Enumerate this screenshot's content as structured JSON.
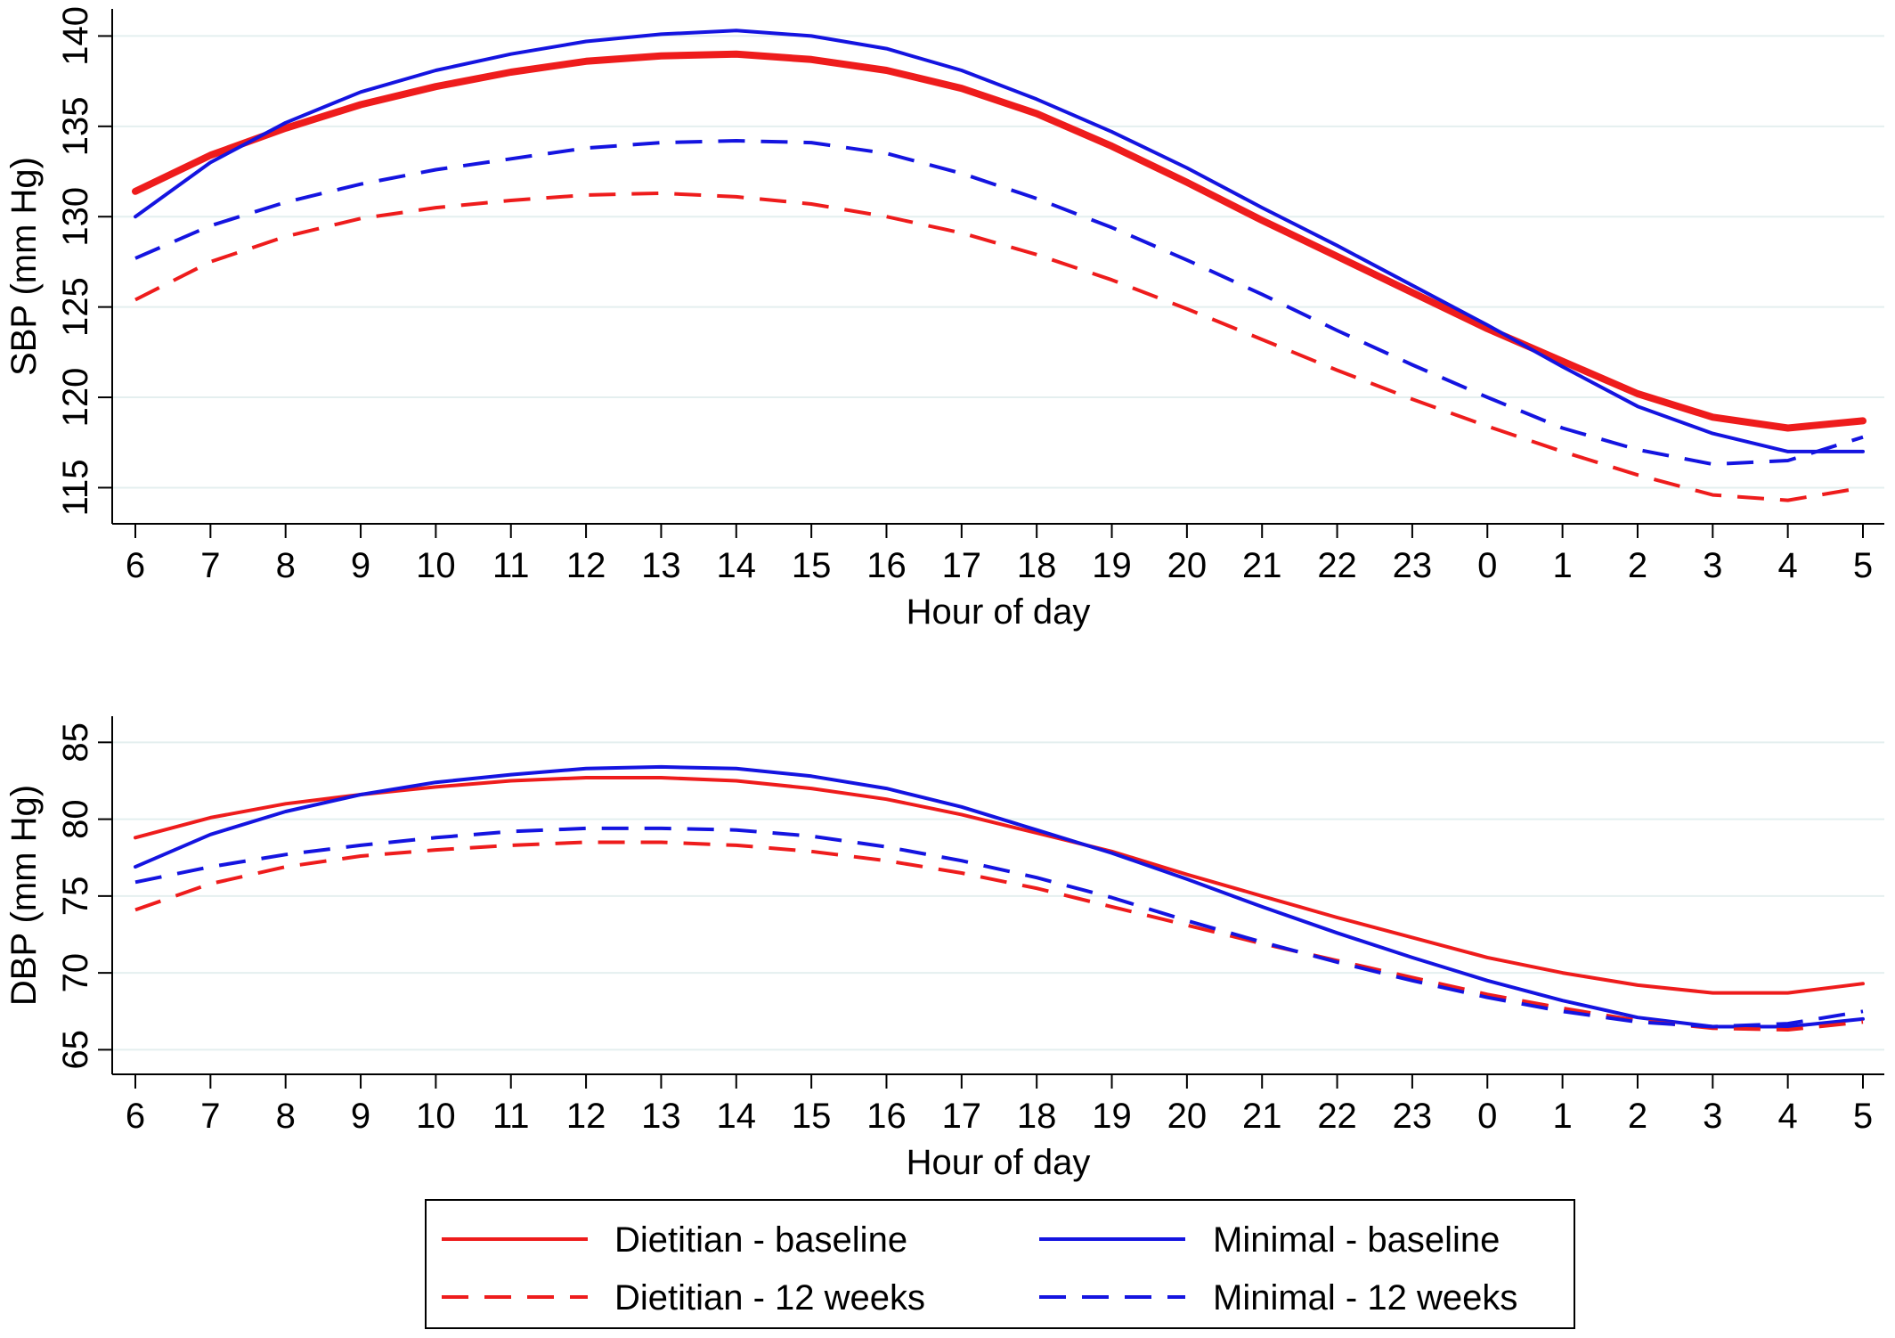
{
  "colors": {
    "dietitian": "#ee1c1c",
    "minimal": "#1414e0",
    "grid": "#e4efef"
  },
  "chart_data": [
    {
      "type": "line",
      "xlabel": "Hour of day",
      "ylabel": "SBP (mm Hg)",
      "categories": [
        "6",
        "7",
        "8",
        "9",
        "10",
        "11",
        "12",
        "13",
        "14",
        "15",
        "16",
        "17",
        "18",
        "19",
        "20",
        "21",
        "22",
        "23",
        "0",
        "1",
        "2",
        "3",
        "4",
        "5"
      ],
      "yticks": [
        115,
        120,
        125,
        130,
        135,
        140
      ],
      "ylim": [
        113,
        141.5
      ],
      "grid": true,
      "series": [
        {
          "name": "Dietitian - baseline",
          "color": "#ee1c1c",
          "dash": false,
          "thick": true,
          "values": [
            131.4,
            133.4,
            134.9,
            136.2,
            137.2,
            138.0,
            138.6,
            138.9,
            139.0,
            138.7,
            138.1,
            137.1,
            135.7,
            133.9,
            131.9,
            129.8,
            127.8,
            125.8,
            123.8,
            122.0,
            120.2,
            118.9,
            118.3,
            118.7
          ]
        },
        {
          "name": "Minimal - baseline",
          "color": "#1414e0",
          "dash": false,
          "thick": false,
          "values": [
            130.0,
            133.0,
            135.2,
            136.9,
            138.1,
            139.0,
            139.7,
            140.1,
            140.3,
            140.0,
            139.3,
            138.1,
            136.5,
            134.7,
            132.7,
            130.5,
            128.4,
            126.2,
            124.0,
            121.7,
            119.5,
            118.0,
            117.0,
            117.0
          ]
        },
        {
          "name": "Dietitian - 12 weeks",
          "color": "#ee1c1c",
          "dash": true,
          "thick": false,
          "values": [
            125.4,
            127.5,
            128.9,
            129.9,
            130.5,
            130.9,
            131.2,
            131.3,
            131.1,
            130.7,
            130.0,
            129.1,
            127.9,
            126.5,
            124.9,
            123.2,
            121.5,
            119.9,
            118.4,
            117.0,
            115.7,
            114.6,
            114.3,
            115.0
          ]
        },
        {
          "name": "Minimal - 12 weeks",
          "color": "#1414e0",
          "dash": true,
          "thick": false,
          "values": [
            127.7,
            129.5,
            130.8,
            131.8,
            132.6,
            133.2,
            133.8,
            134.1,
            134.2,
            134.1,
            133.5,
            132.4,
            131.0,
            129.4,
            127.6,
            125.7,
            123.7,
            121.8,
            120.0,
            118.3,
            117.1,
            116.3,
            116.5,
            117.8
          ]
        }
      ]
    },
    {
      "type": "line",
      "xlabel": "Hour of day",
      "ylabel": "DBP (mm Hg)",
      "categories": [
        "6",
        "7",
        "8",
        "9",
        "10",
        "11",
        "12",
        "13",
        "14",
        "15",
        "16",
        "17",
        "18",
        "19",
        "20",
        "21",
        "22",
        "23",
        "0",
        "1",
        "2",
        "3",
        "4",
        "5"
      ],
      "yticks": [
        65,
        70,
        75,
        80,
        85
      ],
      "ylim": [
        63.4,
        86.7
      ],
      "grid": true,
      "series": [
        {
          "name": "Dietitian - baseline",
          "color": "#ee1c1c",
          "dash": false,
          "thick": false,
          "values": [
            78.8,
            80.1,
            81.0,
            81.6,
            82.1,
            82.5,
            82.7,
            82.7,
            82.5,
            82.0,
            81.3,
            80.3,
            79.1,
            77.9,
            76.4,
            75.0,
            73.6,
            72.3,
            71.0,
            70.0,
            69.2,
            68.7,
            68.7,
            69.3
          ]
        },
        {
          "name": "Minimal - baseline",
          "color": "#1414e0",
          "dash": false,
          "thick": false,
          "values": [
            76.9,
            79.0,
            80.5,
            81.6,
            82.4,
            82.9,
            83.3,
            83.4,
            83.3,
            82.8,
            82.0,
            80.8,
            79.3,
            77.8,
            76.1,
            74.3,
            72.6,
            71.0,
            69.5,
            68.2,
            67.1,
            66.5,
            66.5,
            67.0
          ]
        },
        {
          "name": "Dietitian - 12 weeks",
          "color": "#ee1c1c",
          "dash": true,
          "thick": false,
          "values": [
            74.1,
            75.8,
            76.9,
            77.6,
            78.0,
            78.3,
            78.5,
            78.5,
            78.3,
            77.9,
            77.3,
            76.5,
            75.5,
            74.3,
            73.1,
            71.9,
            70.8,
            69.7,
            68.6,
            67.7,
            66.9,
            66.4,
            66.3,
            66.8
          ]
        },
        {
          "name": "Minimal - 12 weeks",
          "color": "#1414e0",
          "dash": true,
          "thick": false,
          "values": [
            75.9,
            76.9,
            77.7,
            78.3,
            78.8,
            79.2,
            79.4,
            79.4,
            79.3,
            78.9,
            78.2,
            77.3,
            76.2,
            74.9,
            73.4,
            72.0,
            70.7,
            69.5,
            68.4,
            67.5,
            66.8,
            66.5,
            66.7,
            67.5
          ]
        }
      ]
    }
  ],
  "legend": {
    "entries": [
      {
        "label": "Dietitian - baseline",
        "color": "#ee1c1c",
        "dash": false
      },
      {
        "label": "Minimal - baseline",
        "color": "#1414e0",
        "dash": false
      },
      {
        "label": "Dietitian - 12 weeks",
        "color": "#ee1c1c",
        "dash": true
      },
      {
        "label": "Minimal - 12 weeks",
        "color": "#1414e0",
        "dash": true
      }
    ]
  }
}
